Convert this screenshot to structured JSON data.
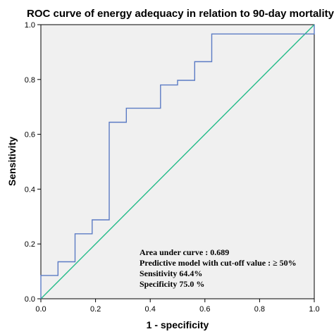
{
  "chart_data": {
    "type": "line",
    "title": "ROC curve of energy adequacy in relation to 90-day mortality",
    "xlabel": "1 - specificity",
    "ylabel": "Sensitivity",
    "xlim": [
      0,
      1
    ],
    "ylim": [
      0,
      1
    ],
    "xticks": [
      0.0,
      0.2,
      0.4,
      0.6,
      0.8,
      1.0
    ],
    "yticks": [
      0.0,
      0.2,
      0.4,
      0.6,
      0.8,
      1.0
    ],
    "xtick_labels": [
      "0.0",
      "0.2",
      "0.4",
      "0.6",
      "0.8",
      "1.0"
    ],
    "ytick_labels": [
      "0.0",
      "0.2",
      "0.4",
      "0.6",
      "0.8",
      "1.0"
    ],
    "grid": false,
    "series": [
      {
        "role": "roc",
        "color": "#5b7bc4",
        "step": true,
        "x": [
          0.0,
          0.0,
          0.0625,
          0.0625,
          0.125,
          0.125,
          0.1875,
          0.1875,
          0.25,
          0.25,
          0.3125,
          0.3125,
          0.4375,
          0.4375,
          0.5,
          0.5,
          0.5625,
          0.5625,
          0.625,
          0.625,
          1.0,
          1.0
        ],
        "y": [
          0.0,
          0.085,
          0.085,
          0.135,
          0.135,
          0.237,
          0.237,
          0.288,
          0.288,
          0.644,
          0.644,
          0.695,
          0.695,
          0.78,
          0.78,
          0.797,
          0.797,
          0.865,
          0.865,
          0.966,
          0.966,
          1.0
        ]
      },
      {
        "role": "reference",
        "color": "#22bb88",
        "step": false,
        "x": [
          0,
          1
        ],
        "y": [
          0,
          1
        ]
      }
    ],
    "annotations": [
      "Area under curve : 0.689",
      "Predictive model with cut-off value : ≥ 50%",
      "Sensitivity 64.4%",
      "Specificity 75.0 %"
    ],
    "annotation_placement": "bottom-right",
    "plot_background": "#f0f0f0"
  }
}
